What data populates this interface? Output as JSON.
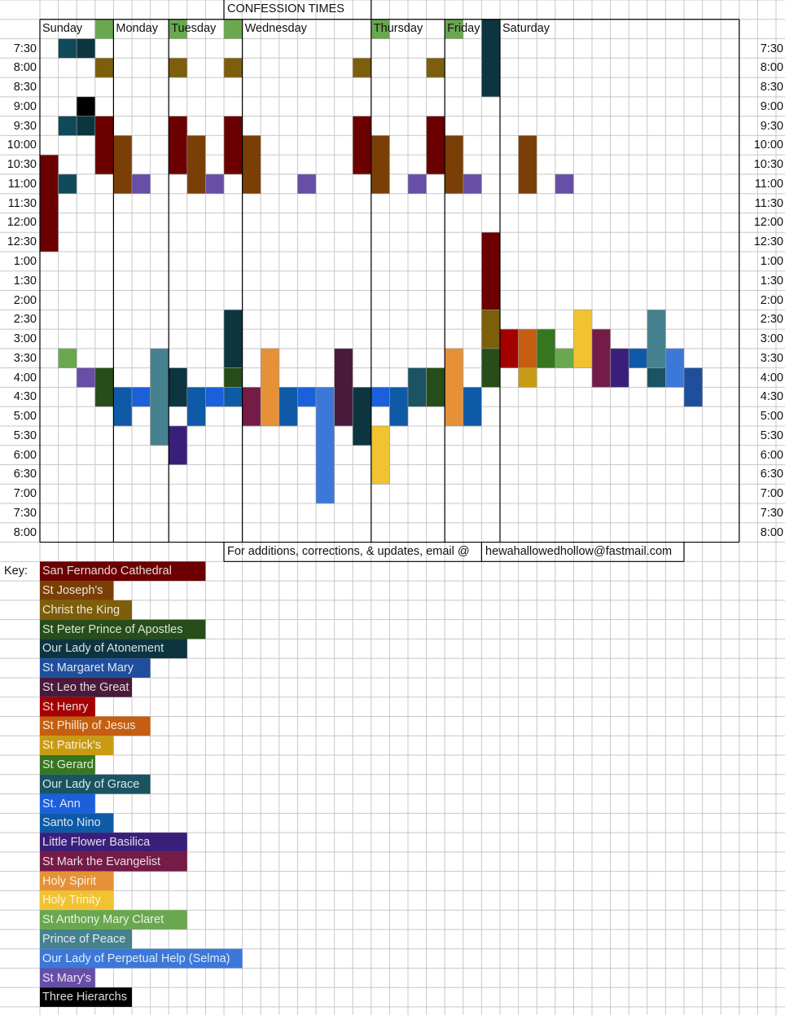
{
  "title": "CONFESSION TIMES",
  "days": [
    "Sunday",
    "Monday",
    "Tuesday",
    "Wednesday",
    "Thursday",
    "Friday",
    "Saturday"
  ],
  "times": [
    "7:30",
    "8:00",
    "8:30",
    "9:00",
    "9:30",
    "10:00",
    "10:30",
    "11:00",
    "11:30",
    "12:00",
    "12:30",
    "1:00",
    "1:30",
    "2:00",
    "2:30",
    "3:00",
    "3:30",
    "4:00",
    "4:30",
    "5:00",
    "5:30",
    "6:00",
    "6:30",
    "7:00",
    "7:30",
    "8:00"
  ],
  "footer_note": "For additions, corrections, & updates, email @",
  "email": "hewahallowedhollow@fastmail.com",
  "key_label": "Key:",
  "key": [
    {
      "name": "San Fernando Cathedral",
      "color": "#6b0000",
      "span": 9
    },
    {
      "name": "St Joseph's",
      "color": "#7a3f06",
      "span": 4
    },
    {
      "name": "Christ the King",
      "color": "#7d5e0b",
      "span": 5
    },
    {
      "name": "St Peter Prince of Apostles",
      "color": "#274d1a",
      "span": 9
    },
    {
      "name": "Our Lady of Atonement",
      "color": "#0c3540",
      "span": 8
    },
    {
      "name": "St Margaret Mary",
      "color": "#1f4f9c",
      "span": 6
    },
    {
      "name": "St Leo the Great",
      "color": "#4a1a3a",
      "span": 5
    },
    {
      "name": "St Henry",
      "color": "#a30000",
      "span": 3
    },
    {
      "name": "St Phillip of Jesus",
      "color": "#c55e10",
      "span": 6
    },
    {
      "name": "St Patrick's",
      "color": "#c99b12",
      "span": 4
    },
    {
      "name": "St Gerard",
      "color": "#35761f",
      "span": 3
    },
    {
      "name": "Our Lady of Grace",
      "color": "#1a5463",
      "span": 6
    },
    {
      "name": "St. Ann",
      "color": "#1c5fdb",
      "span": 3
    },
    {
      "name": "Santo Nino",
      "color": "#0f5aa6",
      "span": 4
    },
    {
      "name": "Little Flower Basilica",
      "color": "#3a1f7a",
      "span": 8
    },
    {
      "name": "St Mark the Evangelist",
      "color": "#741b47",
      "span": 8
    },
    {
      "name": "Holy Spirit",
      "color": "#e69138",
      "span": 4
    },
    {
      "name": "Holy Trinity",
      "color": "#f1c232",
      "span": 4
    },
    {
      "name": "St Anthony Mary Claret",
      "color": "#6aa84f",
      "span": 8
    },
    {
      "name": "Prince of Peace",
      "color": "#45818e",
      "span": 5
    },
    {
      "name": "Our Lady of Perpetual Help (Selma)",
      "color": "#3c78d8",
      "span": 11
    },
    {
      "name": "St Mary's",
      "color": "#674ea7",
      "span": 3
    },
    {
      "name": "Three Hierarchs",
      "color": "#000000",
      "span": 5
    }
  ],
  "schedule": [
    {
      "col": 0,
      "row": 8,
      "h": 5,
      "color": "#6b0000"
    },
    {
      "col": 1,
      "row": 2,
      "h": 1,
      "color": "#0f4a5a"
    },
    {
      "col": 1,
      "row": 6,
      "h": 1,
      "color": "#0f4a5a"
    },
    {
      "col": 1,
      "row": 9,
      "h": 1,
      "color": "#0f4a5a"
    },
    {
      "col": 1,
      "row": 18,
      "h": 1,
      "color": "#6aa84f"
    },
    {
      "col": 2,
      "row": 2,
      "h": 1,
      "color": "#0c3540"
    },
    {
      "col": 2,
      "row": 6,
      "h": 1,
      "color": "#0c3540"
    },
    {
      "col": 2,
      "row": 5,
      "h": 1,
      "color": "#000000"
    },
    {
      "col": 2,
      "row": 19,
      "h": 1,
      "color": "#674ea7"
    },
    {
      "col": 3,
      "row": 1,
      "h": 1,
      "color": "#6aa84f"
    },
    {
      "col": 3,
      "row": 3,
      "h": 1,
      "color": "#7d5e0b"
    },
    {
      "col": 3,
      "row": 6,
      "h": 3,
      "color": "#6b0000"
    },
    {
      "col": 3,
      "row": 19,
      "h": 2,
      "color": "#274d1a"
    },
    {
      "col": 4,
      "row": 7,
      "h": 3,
      "color": "#7a3f06"
    },
    {
      "col": 4,
      "row": 20,
      "h": 2,
      "color": "#0f5aa6"
    },
    {
      "col": 5,
      "row": 9,
      "h": 1,
      "color": "#674ea7"
    },
    {
      "col": 5,
      "row": 20,
      "h": 1,
      "color": "#1c5fdb"
    },
    {
      "col": 6,
      "row": 18,
      "h": 5,
      "color": "#45818e"
    },
    {
      "col": 7,
      "row": 1,
      "h": 1,
      "color": "#6aa84f"
    },
    {
      "col": 7,
      "row": 3,
      "h": 1,
      "color": "#7d5e0b"
    },
    {
      "col": 7,
      "row": 6,
      "h": 3,
      "color": "#6b0000"
    },
    {
      "col": 7,
      "row": 19,
      "h": 2,
      "color": "#0c3540"
    },
    {
      "col": 7,
      "row": 22,
      "h": 2,
      "color": "#3a1f7a"
    },
    {
      "col": 8,
      "row": 7,
      "h": 3,
      "color": "#7a3f06"
    },
    {
      "col": 8,
      "row": 20,
      "h": 2,
      "color": "#0f5aa6"
    },
    {
      "col": 9,
      "row": 9,
      "h": 1,
      "color": "#674ea7"
    },
    {
      "col": 9,
      "row": 20,
      "h": 1,
      "color": "#1c5fdb"
    },
    {
      "col": 10,
      "row": 1,
      "h": 1,
      "color": "#6aa84f"
    },
    {
      "col": 10,
      "row": 3,
      "h": 1,
      "color": "#7d5e0b"
    },
    {
      "col": 10,
      "row": 6,
      "h": 3,
      "color": "#6b0000"
    },
    {
      "col": 10,
      "row": 16,
      "h": 3,
      "color": "#0c3540"
    },
    {
      "col": 10,
      "row": 19,
      "h": 1,
      "color": "#274d1a"
    },
    {
      "col": 10,
      "row": 20,
      "h": 1,
      "color": "#0f5aa6"
    },
    {
      "col": 11,
      "row": 7,
      "h": 3,
      "color": "#7a3f06"
    },
    {
      "col": 11,
      "row": 20,
      "h": 2,
      "color": "#741b47"
    },
    {
      "col": 12,
      "row": 18,
      "h": 4,
      "color": "#e69138"
    },
    {
      "col": 13,
      "row": 20,
      "h": 2,
      "color": "#0f5aa6"
    },
    {
      "col": 14,
      "row": 9,
      "h": 1,
      "color": "#674ea7"
    },
    {
      "col": 14,
      "row": 20,
      "h": 1,
      "color": "#1c5fdb"
    },
    {
      "col": 15,
      "row": 20,
      "h": 6,
      "color": "#3c78d8"
    },
    {
      "col": 16,
      "row": 18,
      "h": 4,
      "color": "#4a1a3a"
    },
    {
      "col": 17,
      "row": 3,
      "h": 1,
      "color": "#7d5e0b"
    },
    {
      "col": 17,
      "row": 6,
      "h": 3,
      "color": "#6b0000"
    },
    {
      "col": 17,
      "row": 20,
      "h": 3,
      "color": "#0c3540"
    },
    {
      "col": 18,
      "row": 1,
      "h": 1,
      "color": "#6aa84f"
    },
    {
      "col": 18,
      "row": 7,
      "h": 3,
      "color": "#7a3f06"
    },
    {
      "col": 18,
      "row": 20,
      "h": 1,
      "color": "#1c5fdb"
    },
    {
      "col": 18,
      "row": 22,
      "h": 3,
      "color": "#f1c232"
    },
    {
      "col": 19,
      "row": 20,
      "h": 2,
      "color": "#0f5aa6"
    },
    {
      "col": 20,
      "row": 9,
      "h": 1,
      "color": "#674ea7"
    },
    {
      "col": 20,
      "row": 19,
      "h": 2,
      "color": "#1a5463"
    },
    {
      "col": 21,
      "row": 3,
      "h": 1,
      "color": "#7d5e0b"
    },
    {
      "col": 21,
      "row": 6,
      "h": 3,
      "color": "#6b0000"
    },
    {
      "col": 21,
      "row": 19,
      "h": 2,
      "color": "#274d1a"
    },
    {
      "col": 22,
      "row": 1,
      "h": 1,
      "color": "#6aa84f"
    },
    {
      "col": 22,
      "row": 7,
      "h": 3,
      "color": "#7a3f06"
    },
    {
      "col": 22,
      "row": 18,
      "h": 4,
      "color": "#e69138"
    },
    {
      "col": 23,
      "row": 9,
      "h": 1,
      "color": "#674ea7"
    },
    {
      "col": 23,
      "row": 20,
      "h": 2,
      "color": "#0f5aa6"
    },
    {
      "col": 24,
      "row": 1,
      "h": 4,
      "color": "#0c3540"
    },
    {
      "col": 24,
      "row": 12,
      "h": 4,
      "color": "#6b0000"
    },
    {
      "col": 24,
      "row": 16,
      "h": 2,
      "color": "#7d5e0b"
    },
    {
      "col": 24,
      "row": 18,
      "h": 2,
      "color": "#274d1a"
    },
    {
      "col": 25,
      "row": 17,
      "h": 2,
      "color": "#a30000"
    },
    {
      "col": 26,
      "row": 7,
      "h": 3,
      "color": "#7a3f06"
    },
    {
      "col": 26,
      "row": 17,
      "h": 2,
      "color": "#c55e10"
    },
    {
      "col": 26,
      "row": 19,
      "h": 1,
      "color": "#c99b12"
    },
    {
      "col": 27,
      "row": 17,
      "h": 2,
      "color": "#35761f"
    },
    {
      "col": 28,
      "row": 9,
      "h": 1,
      "color": "#674ea7"
    },
    {
      "col": 28,
      "row": 18,
      "h": 1,
      "color": "#6aa84f"
    },
    {
      "col": 29,
      "row": 16,
      "h": 3,
      "color": "#f1c232"
    },
    {
      "col": 30,
      "row": 17,
      "h": 3,
      "color": "#741b47"
    },
    {
      "col": 31,
      "row": 18,
      "h": 2,
      "color": "#3a1f7a"
    },
    {
      "col": 32,
      "row": 18,
      "h": 1,
      "color": "#0f5aa6"
    },
    {
      "col": 33,
      "row": 16,
      "h": 3,
      "color": "#45818e"
    },
    {
      "col": 33,
      "row": 19,
      "h": 1,
      "color": "#1a5463"
    },
    {
      "col": 34,
      "row": 18,
      "h": 2,
      "color": "#3c78d8"
    },
    {
      "col": 35,
      "row": 19,
      "h": 2,
      "color": "#1f4f9c"
    }
  ]
}
